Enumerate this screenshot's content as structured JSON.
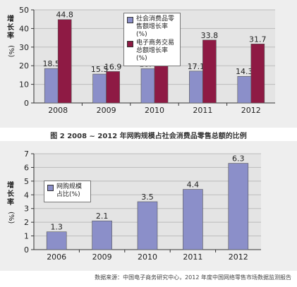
{
  "charts": {
    "c1": {
      "y_axis_label": "增长率(%)",
      "legend": [
        {
          "label": "社会消费品零售额增长率(%)",
          "color": "#8b8fc9"
        },
        {
          "label": "电子商务交易总额增长率(%)",
          "color": "#8e1a44"
        }
      ],
      "caption": "图 2 2008 ~ 2012 年网购规模占社会消费品零售总额的比例"
    },
    "c2": {
      "y_axis_label": "增长率(%)",
      "legend": [
        {
          "label": "网购规模占比(%)",
          "color": "#8b8fc9"
        }
      ],
      "source": "数据来源：中国电子商务研究中心，2012 年度中国网络零售市场数据监测报告"
    }
  },
  "chart_data": [
    {
      "type": "bar",
      "categories": [
        "2008",
        "2009",
        "2010",
        "2011",
        "2012"
      ],
      "series": [
        {
          "name": "社会消费品零售额增长率(%)",
          "values": [
            18.5,
            15.5,
            18.4,
            17.1,
            14.3
          ],
          "color": "#8b8fc9"
        },
        {
          "name": "电子商务交易总额增长率(%)",
          "values": [
            44.8,
            16.9,
            23.9,
            33.8,
            31.7
          ],
          "color": "#8e1a44"
        }
      ],
      "value_labels": [
        [
          "18.5",
          "15.5",
          "18.4",
          "17.1",
          "14.3"
        ],
        [
          "44.8",
          "16.9",
          "23.9",
          "33.8",
          "31.7"
        ]
      ],
      "ylabel": "增长率(%)",
      "ylim": [
        0,
        50
      ],
      "yticks": [
        0,
        10,
        20,
        30,
        40,
        50
      ],
      "grid": true,
      "legend_position": "top-center",
      "title": "图 2 2008 ~ 2012 年网购规模占社会消费品零售总额的比例"
    },
    {
      "type": "bar",
      "categories": [
        "2006",
        "2009",
        "2010",
        "2011",
        "2012"
      ],
      "series": [
        {
          "name": "网购规模占比(%)",
          "values": [
            1.3,
            2.1,
            3.5,
            4.4,
            6.3
          ],
          "color": "#8b8fc9"
        }
      ],
      "value_labels": [
        [
          "1.3",
          "2.1",
          "3.5",
          "4.4",
          "6.3"
        ]
      ],
      "ylabel": "增长率(%)",
      "ylim": [
        0,
        7
      ],
      "yticks": [
        0,
        1,
        2,
        3,
        4,
        5,
        6,
        7
      ],
      "grid": true,
      "legend_position": "top-left",
      "title": ""
    }
  ]
}
